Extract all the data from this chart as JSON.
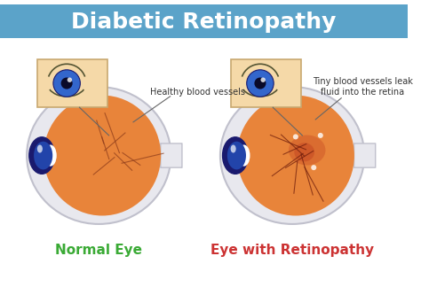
{
  "title": "Diabetic Retinopathy",
  "title_bg": "#5ba3c9",
  "title_color": "white",
  "title_fontsize": 18,
  "bg_color": "white",
  "label_left": "Normal Eye",
  "label_right": "Eye with Retinopathy",
  "label_left_color": "#3aaa35",
  "label_right_color": "#cc3333",
  "annotation_left": "Healthy blood vessels",
  "annotation_right": "Tiny blood vessels leak\nfluid into the retina",
  "eye_outer_color": "#e8e8ee",
  "eye_orange_color": "#e8843a",
  "inset_bg": "#f5d9a8",
  "retina_damage_color": "#c04020"
}
